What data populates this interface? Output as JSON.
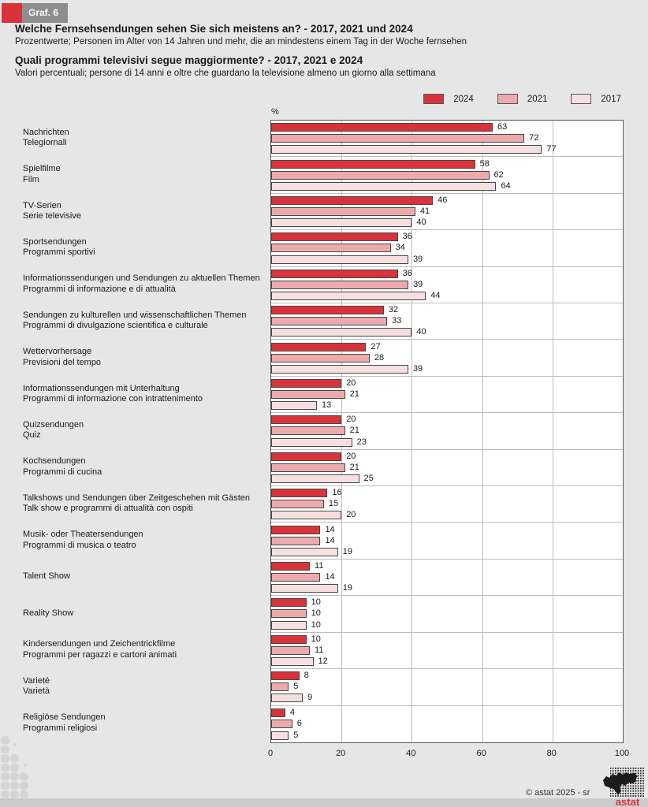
{
  "figure_label": "Graf. 6",
  "header": {
    "title_de": "Welche Fernsehsendungen sehen Sie sich meistens an? - 2017, 2021 und 2024",
    "subtitle_de": "Prozentwerte; Personen im Alter von 14 Jahren und mehr, die an mindestens einem Tag in der Woche fernsehen",
    "title_it": "Quali programmi televisivi segue maggiormente? - 2017, 2021 e 2024",
    "subtitle_it": "Valori percentuali; persone di 14 anni e oltre che guardano la televisione almeno un giorno alla settimana"
  },
  "legend": [
    {
      "label": "2024",
      "color": "#d8333a"
    },
    {
      "label": "2021",
      "color": "#ecaaac"
    },
    {
      "label": "2017",
      "color": "#f6dfe1"
    }
  ],
  "chart_data": {
    "type": "bar",
    "orientation": "horizontal",
    "unit_label": "%",
    "xlim": [
      0,
      100
    ],
    "xticks": [
      0,
      20,
      40,
      60,
      80,
      100
    ],
    "grid": true,
    "legend_position": "top-right",
    "series_names": [
      "2024",
      "2021",
      "2017"
    ],
    "categories": [
      {
        "label_de": "Nachrichten",
        "label_it": "Telegiornali",
        "values": [
          63,
          72,
          77
        ]
      },
      {
        "label_de": "Spielfilme",
        "label_it": "Film",
        "values": [
          58,
          62,
          64
        ]
      },
      {
        "label_de": "TV-Serien",
        "label_it": "Serie televisive",
        "values": [
          46,
          41,
          40
        ]
      },
      {
        "label_de": "Sportsendungen",
        "label_it": "Programmi sportivi",
        "values": [
          36,
          34,
          39
        ]
      },
      {
        "label_de": "Informationssendungen und Sendungen zu aktuellen Themen",
        "label_it": "Programmi di informazione e di attualità",
        "values": [
          36,
          39,
          44
        ]
      },
      {
        "label_de": "Sendungen zu kulturellen und wissenschaftlichen Themen",
        "label_it": "Programmi di divulgazione scientifica e culturale",
        "values": [
          32,
          33,
          40
        ]
      },
      {
        "label_de": "Wettervorhersage",
        "label_it": "Previsioni del tempo",
        "values": [
          27,
          28,
          39
        ]
      },
      {
        "label_de": "Informationssendungen mit Unterhaltung",
        "label_it": "Programmi di informazione con intrattenimento",
        "values": [
          20,
          21,
          13
        ]
      },
      {
        "label_de": "Quizsendungen",
        "label_it": "Quiz",
        "values": [
          20,
          21,
          23
        ]
      },
      {
        "label_de": "Kochsendungen",
        "label_it": "Programmi di cucina",
        "values": [
          20,
          21,
          25
        ]
      },
      {
        "label_de": "Talkshows und Sendungen über Zeitgeschehen mit Gästen",
        "label_it": "Talk show e programmi di attualità con ospiti",
        "values": [
          16,
          15,
          20
        ]
      },
      {
        "label_de": "Musik- oder Theatersendungen",
        "label_it": "Programmi di musica o teatro",
        "values": [
          14,
          14,
          19
        ]
      },
      {
        "label_de": "Talent Show",
        "label_it": "",
        "values": [
          11,
          14,
          19
        ]
      },
      {
        "label_de": "Reality Show",
        "label_it": "",
        "values": [
          10,
          10,
          10
        ]
      },
      {
        "label_de": "Kindersendungen und Zeichentrickfilme",
        "label_it": "Programmi per ragazzi e cartoni animati",
        "values": [
          10,
          11,
          12
        ]
      },
      {
        "label_de": "Varieté",
        "label_it": "Varietà",
        "values": [
          8,
          5,
          9
        ]
      },
      {
        "label_de": "Religiöse Sendungen",
        "label_it": "Programmi religiosi",
        "values": [
          4,
          6,
          5
        ]
      }
    ]
  },
  "footer": {
    "copyright": "© astat 2025 - sr",
    "logo_text": "astat",
    "logo_color": "#d8333a"
  }
}
